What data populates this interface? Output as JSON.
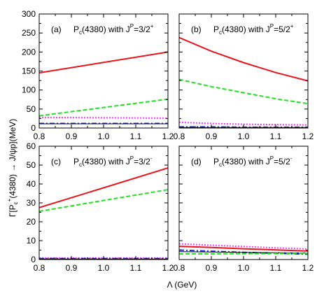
{
  "colors": {
    "red": "#e8141c",
    "green": "#22e022",
    "magenta": "#ee44ee",
    "blue": "#1a2ee0",
    "black": "#000000"
  },
  "axes": {
    "xlabel": "Λ (GeV)",
    "ylabel": {
      "prefix": "Γ[P",
      "sub1": "c",
      "sup1": "+",
      "middle": "(4380) → J/ψp](MeV)"
    },
    "xticks": [
      "0.8",
      "0.9",
      "1.0",
      "1.1",
      "1.2"
    ],
    "top_yticks": [
      "0",
      "50",
      "100",
      "150",
      "200",
      "250",
      "300"
    ],
    "bottom_yticks": [
      "0",
      "10",
      "20",
      "30",
      "40",
      "50",
      "60"
    ]
  },
  "panels": [
    {
      "tag": "(a)",
      "title_pre": "P",
      "title_sub": "c",
      "title_mid": "(4380) with J",
      "title_sup1": "P",
      "title_eq": "=3/2",
      "title_sup2": "+"
    },
    {
      "tag": "(b)",
      "title_pre": "P",
      "title_sub": "c",
      "title_mid": "(4380) with J",
      "title_sup1": "P",
      "title_eq": "=5/2",
      "title_sup2": "+"
    },
    {
      "tag": "(c)",
      "title_pre": "P",
      "title_sub": "c",
      "title_mid": "(4380) with J",
      "title_sup1": "P",
      "title_eq": "=3/2",
      "title_sup2": "-"
    },
    {
      "tag": "(d)",
      "title_pre": "P",
      "title_sub": "c",
      "title_mid": "(4380) with J",
      "title_sup1": "P",
      "title_eq": "=5/2",
      "title_sup2": "-"
    }
  ],
  "chart_data": [
    {
      "type": "line",
      "panel": "(a)",
      "x": [
        0.8,
        1.2
      ],
      "xlim": [
        0.8,
        1.2
      ],
      "ylim": [
        0,
        300
      ],
      "series": [
        {
          "values": [
            145,
            200
          ],
          "color": "#e8141c",
          "style": "solid"
        },
        {
          "values": [
            32,
            76
          ],
          "color": "#22e022",
          "style": "dashed"
        },
        {
          "values": [
            28,
            26
          ],
          "color": "#ee44ee",
          "style": "dotted"
        },
        {
          "values": [
            12,
            12
          ],
          "color": "#1a2ee0",
          "style": "dashdot"
        },
        {
          "values": [
            11,
            11
          ],
          "color": "#000000",
          "style": "solid-thin"
        }
      ]
    },
    {
      "type": "line",
      "panel": "(b)",
      "x": [
        0.8,
        0.9,
        1.0,
        1.1,
        1.2
      ],
      "xlim": [
        0.8,
        1.2
      ],
      "ylim": [
        0,
        300
      ],
      "series": [
        {
          "values": [
            238,
            202,
            172,
            146,
            124
          ],
          "color": "#e8141c",
          "style": "solid"
        },
        {
          "values": [
            128,
            109,
            93,
            77,
            64
          ],
          "color": "#22e022",
          "style": "dashed"
        },
        {
          "values": [
            15,
            12,
            10,
            9,
            8
          ],
          "color": "#ee44ee",
          "style": "dotted"
        },
        {
          "values": [
            3,
            3,
            2,
            2,
            2
          ],
          "color": "#1a2ee0",
          "style": "dashdot"
        },
        {
          "values": [
            1.5,
            1.5,
            1.5,
            1.5,
            1.5
          ],
          "color": "#000000",
          "style": "solid-thin"
        }
      ]
    },
    {
      "type": "line",
      "panel": "(c)",
      "x": [
        0.8,
        1.2
      ],
      "xlim": [
        0.8,
        1.2
      ],
      "ylim": [
        0,
        60
      ],
      "series": [
        {
          "values": [
            27.5,
            48.5
          ],
          "color": "#e8141c",
          "style": "solid"
        },
        {
          "values": [
            25.5,
            37
          ],
          "color": "#22e022",
          "style": "dashed"
        },
        {
          "values": [
            0.8,
            0.8
          ],
          "color": "#ee44ee",
          "style": "dotted"
        },
        {
          "values": [
            0.5,
            0.5
          ],
          "color": "#1a2ee0",
          "style": "dashdot"
        },
        {
          "values": [
            0.3,
            0.3
          ],
          "color": "#000000",
          "style": "solid-thin"
        }
      ]
    },
    {
      "type": "line",
      "panel": "(d)",
      "x": [
        0.8,
        0.9,
        1.0,
        1.1,
        1.2
      ],
      "xlim": [
        0.8,
        1.2
      ],
      "ylim": [
        0,
        60
      ],
      "series": [
        {
          "values": [
            8.3,
            7.6,
            6.9,
            6.2,
            5.6
          ],
          "color": "#ee44ee",
          "style": "dotted"
        },
        {
          "values": [
            7.0,
            6.4,
            5.7,
            5.1,
            4.5
          ],
          "color": "#e8141c",
          "style": "solid"
        },
        {
          "values": [
            5.0,
            4.4,
            3.8,
            3.3,
            2.8
          ],
          "color": "#1a2ee0",
          "style": "dashdot"
        },
        {
          "values": [
            4.2,
            4.0,
            3.8,
            3.6,
            3.4
          ],
          "color": "#000000",
          "style": "solid-thin"
        },
        {
          "values": [
            3.0,
            3.0,
            3.1,
            3.2,
            3.3
          ],
          "color": "#22e022",
          "style": "dashed"
        }
      ]
    }
  ]
}
